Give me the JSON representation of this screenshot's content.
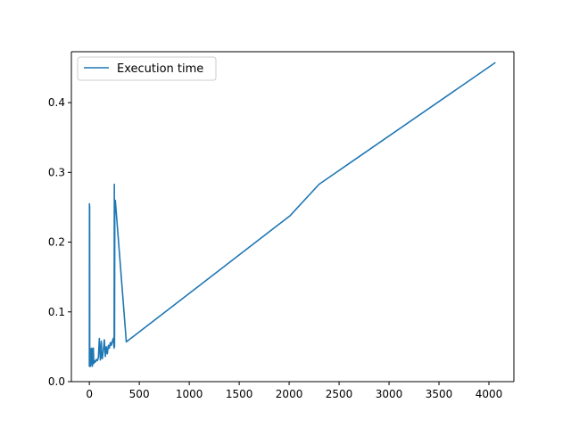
{
  "chart_data": {
    "type": "line",
    "title": "",
    "xlabel": "",
    "ylabel": "",
    "xlim": [
      -180,
      4250
    ],
    "ylim": [
      0.0,
      0.473
    ],
    "x_ticks": [
      0,
      500,
      1000,
      1500,
      2000,
      2500,
      3000,
      3500,
      4000
    ],
    "y_ticks": [
      0.0,
      0.1,
      0.2,
      0.3,
      0.4
    ],
    "x_tick_labels": [
      "0",
      "500",
      "1000",
      "1500",
      "2000",
      "2500",
      "3000",
      "3500",
      "4000"
    ],
    "y_tick_labels": [
      "0.0",
      "0.1",
      "0.2",
      "0.3",
      "0.4"
    ],
    "grid": false,
    "legend": {
      "position": "top-left",
      "entries": [
        "Execution time"
      ]
    },
    "colors": {
      "series": "#1f77b4",
      "axes": "#000000"
    },
    "series": [
      {
        "name": "Execution time",
        "x": [
          0,
          1,
          2,
          3,
          4,
          5,
          6,
          8,
          10,
          12,
          15,
          20,
          25,
          30,
          35,
          40,
          45,
          50,
          60,
          70,
          80,
          90,
          100,
          110,
          120,
          125,
          130,
          140,
          150,
          160,
          170,
          180,
          190,
          200,
          210,
          220,
          230,
          240,
          248,
          250,
          252,
          255,
          260,
          370,
          2010,
          2300,
          4060
        ],
        "y": [
          0.022,
          0.255,
          0.022,
          0.252,
          0.025,
          0.024,
          0.048,
          0.022,
          0.03,
          0.022,
          0.047,
          0.025,
          0.048,
          0.022,
          0.028,
          0.048,
          0.026,
          0.03,
          0.028,
          0.032,
          0.03,
          0.034,
          0.062,
          0.031,
          0.058,
          0.034,
          0.033,
          0.045,
          0.06,
          0.036,
          0.05,
          0.04,
          0.052,
          0.048,
          0.056,
          0.052,
          0.058,
          0.062,
          0.048,
          0.283,
          0.05,
          0.255,
          0.26,
          0.057,
          0.238,
          0.283,
          0.457
        ]
      }
    ]
  }
}
